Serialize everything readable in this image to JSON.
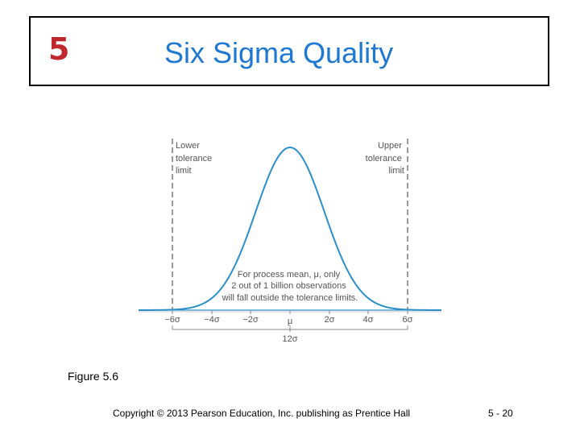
{
  "header": {
    "chapter_number": "5",
    "title": "Six Sigma Quality"
  },
  "figure": {
    "lower_label": [
      "Lower",
      "tolerance",
      "limit"
    ],
    "upper_label": [
      "Upper",
      "tolerance",
      "limit"
    ],
    "annotation": [
      "For process mean, μ, only",
      "2 out of 1 billion observations",
      "will fall outside the tolerance limits."
    ],
    "x_ticks": [
      "−6σ",
      "−4σ",
      "−2σ",
      "μ",
      "2σ",
      "4σ",
      "6σ"
    ],
    "span_label": "12σ",
    "caption": "Figure 5.6",
    "curve_color": "#2b8fc9"
  },
  "footer": {
    "copyright": "Copyright © 2013 Pearson Education, Inc. publishing as Prentice Hall",
    "slide_number": "5 - 20"
  }
}
